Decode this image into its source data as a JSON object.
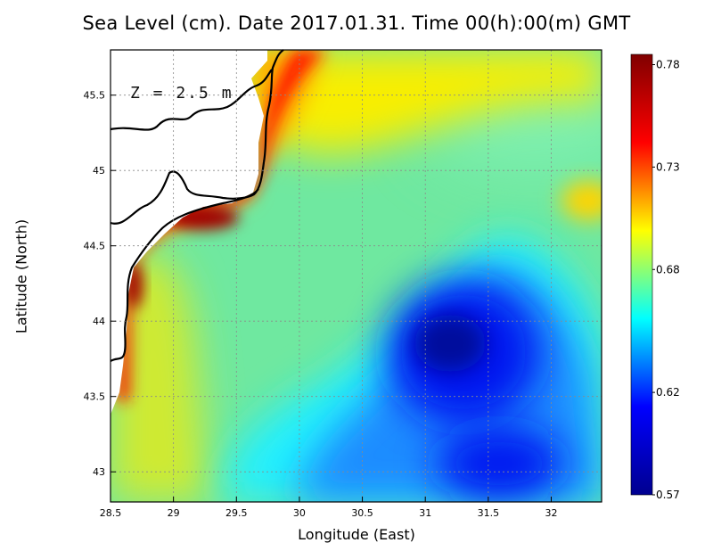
{
  "title": "Sea Level (cm). Date 2017.01.31. Time 00(h):00(m) GMT",
  "depth_label": "Z = 2.5 m",
  "xlabel": "Longitude (East)",
  "ylabel": "Latitude (North)",
  "chart_data": {
    "type": "heatmap",
    "title": "Sea Level (cm). Date 2017.01.31. Time 00(h):00(m) GMT",
    "xlabel": "Longitude (East)",
    "ylabel": "Latitude (North)",
    "xlim": [
      28.5,
      32.4
    ],
    "ylim": [
      42.8,
      45.8
    ],
    "x_ticks": [
      "28.5",
      "29",
      "29.5",
      "30",
      "30.5",
      "31",
      "31.5",
      "32"
    ],
    "y_ticks": [
      "43",
      "43.5",
      "44",
      "44.5",
      "45",
      "45.5"
    ],
    "colorbar": {
      "ticks": [
        "0.78",
        "0.73",
        "0.68",
        "0.62",
        "0.57"
      ],
      "min": 0.57,
      "max": 0.785
    },
    "grid": true,
    "colormap": [
      "#00008f",
      "#0000ff",
      "#00ffff",
      "#ffff00",
      "#ff0000",
      "#800000"
    ],
    "features": {
      "coast_high_max": 0.78,
      "eddy_low_center": [
        31.2,
        43.8
      ],
      "eddy_low_value": 0.57
    }
  }
}
